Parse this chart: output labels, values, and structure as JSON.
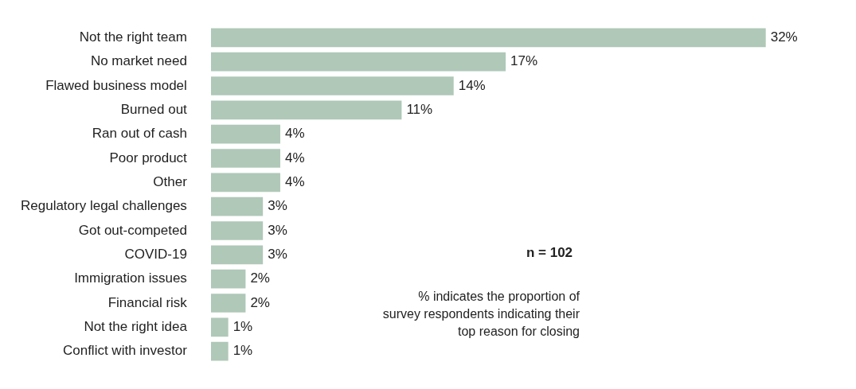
{
  "chart_data": {
    "type": "bar",
    "orientation": "horizontal",
    "categories": [
      "Not the right team",
      "No market need",
      "Flawed business model",
      "Burned out",
      "Ran out of cash",
      "Poor product",
      "Other",
      "Regulatory legal challenges",
      "Got out-competed",
      "COVID-19",
      "Immigration issues",
      "Financial risk",
      "Not the right idea",
      "Conflict with investor"
    ],
    "values": [
      32,
      17,
      14,
      11,
      4,
      4,
      4,
      3,
      3,
      3,
      2,
      2,
      1,
      1
    ],
    "value_labels": [
      "32%",
      "17%",
      "14%",
      "11%",
      "4%",
      "4%",
      "4%",
      "3%",
      "3%",
      "3%",
      "2%",
      "2%",
      "1%",
      "1%"
    ],
    "color": "#afc8b8",
    "tick_labels": "y",
    "grid": false,
    "legend": false,
    "annotations": [
      "n = 102",
      "% indicates the proportion of survey respondents indicating their top reason for closing"
    ]
  }
}
